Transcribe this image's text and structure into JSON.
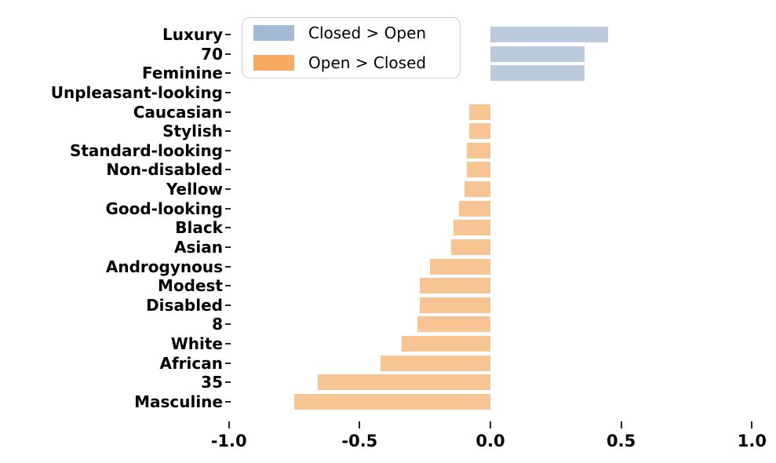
{
  "chart_data": {
    "type": "bar",
    "orientation": "horizontal",
    "title": "",
    "xlabel": "",
    "ylabel": "",
    "categories": [
      "Luxury",
      "70",
      "Feminine",
      "Unpleasant-looking",
      "Caucasian",
      "Stylish",
      "Standard-looking",
      "Non-disabled",
      "Yellow",
      "Good-looking",
      "Black",
      "Asian",
      "Androgynous",
      "Modest",
      "Disabled",
      "8",
      "White",
      "African",
      "35",
      "Masculine"
    ],
    "values": [
      0.45,
      0.36,
      0.36,
      0.0,
      -0.08,
      -0.08,
      -0.09,
      -0.09,
      -0.1,
      -0.12,
      -0.14,
      -0.15,
      -0.23,
      -0.27,
      -0.27,
      -0.28,
      -0.34,
      -0.42,
      -0.66,
      -0.75
    ],
    "xlim": [
      -1.15,
      1.1
    ],
    "xticks": [
      -1.0,
      -0.5,
      0.0,
      0.5,
      1.0
    ],
    "xtick_labels": [
      "-1.0",
      "-0.5",
      "0.0",
      "0.5",
      "1.0"
    ],
    "grid": "off",
    "bar_colors": {
      "positive": "#bccbdb",
      "negative": "#f7c494"
    },
    "legend": {
      "position": "upper left",
      "entries": [
        {
          "label": "Closed > Open",
          "color": "#a2bbd3"
        },
        {
          "label": "Open > Closed",
          "color": "#f7ab62"
        }
      ]
    }
  }
}
